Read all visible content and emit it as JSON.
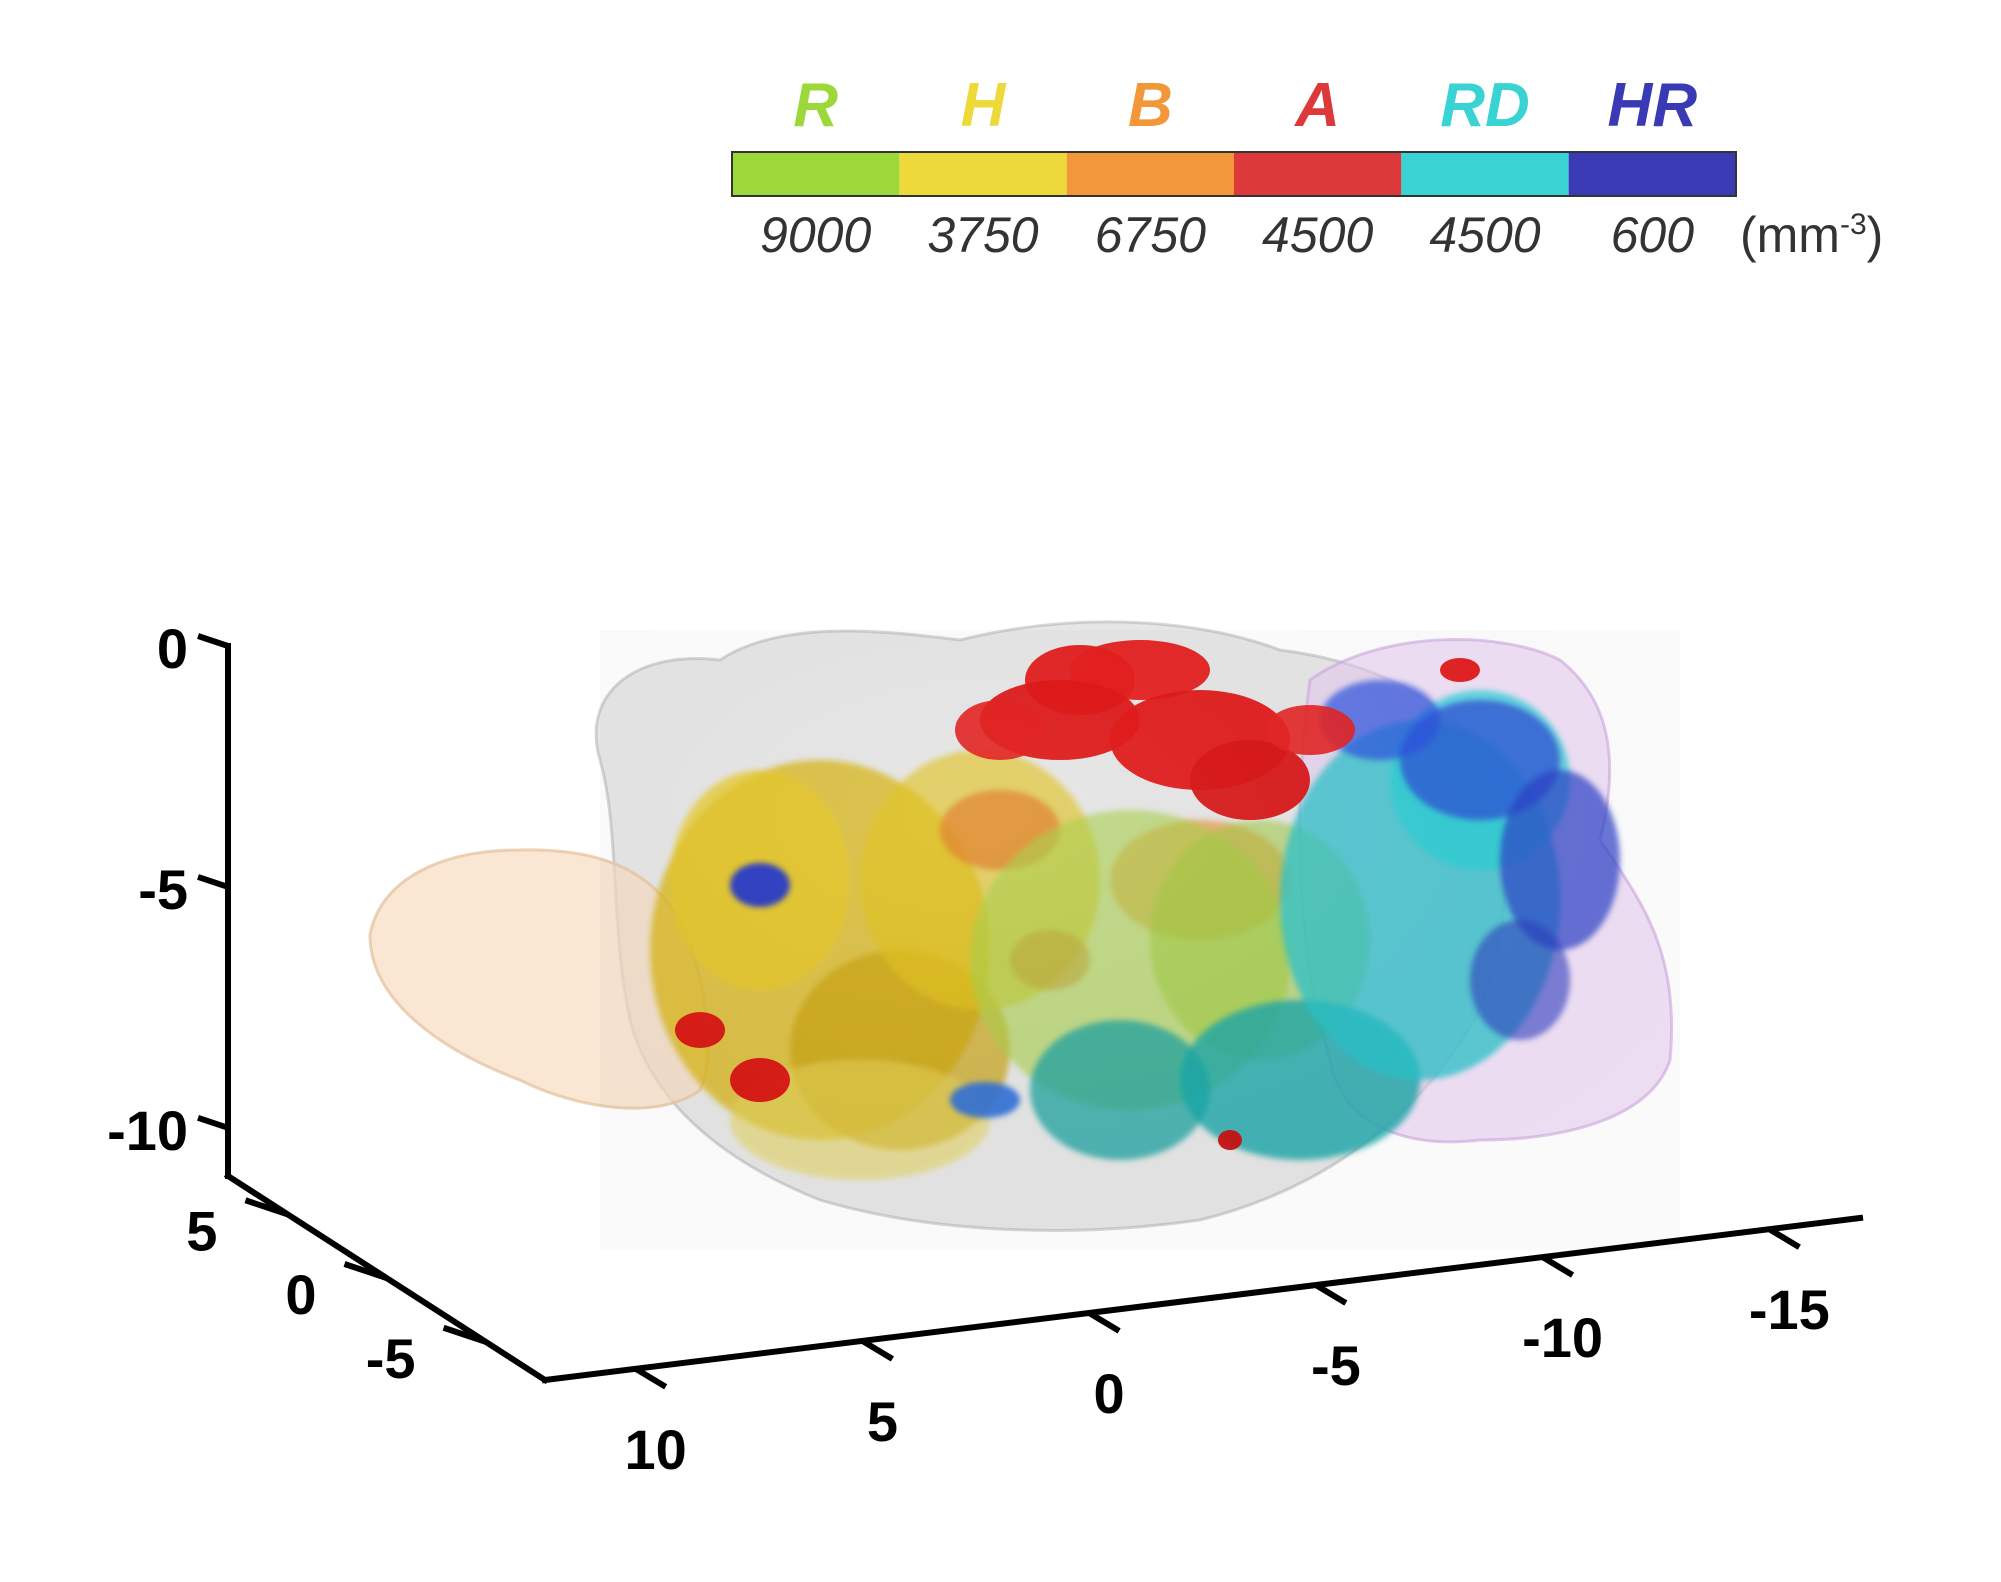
{
  "chart_data": {
    "type": "3d-isosurface",
    "legend": {
      "placement": "top-right",
      "unit": "(mm-3)",
      "unit_base": "(mm",
      "unit_sup": "-3",
      "unit_close": ")",
      "categories": [
        {
          "name": "R",
          "value": "9000",
          "color": "#9cd83a"
        },
        {
          "name": "H",
          "value": "3750",
          "color": "#eed93a"
        },
        {
          "name": "B",
          "value": "6750",
          "color": "#f2973a"
        },
        {
          "name": "A",
          "value": "4500",
          "color": "#dc3a3a"
        },
        {
          "name": "RD",
          "value": "4500",
          "color": "#3ad3d3"
        },
        {
          "name": "HR",
          "value": "600",
          "color": "#3a3ab4"
        }
      ]
    },
    "z_axis": {
      "ticks": [
        "0",
        "-5",
        "-10"
      ],
      "range": [
        -11,
        0
      ]
    },
    "y_axis": {
      "ticks": [
        "5",
        "0",
        "-5"
      ],
      "range": [
        -8,
        8
      ]
    },
    "x_axis": {
      "ticks": [
        "10",
        "5",
        "0",
        "-5",
        "-10",
        "-15"
      ],
      "range": [
        12,
        -17
      ]
    },
    "grid": false
  }
}
